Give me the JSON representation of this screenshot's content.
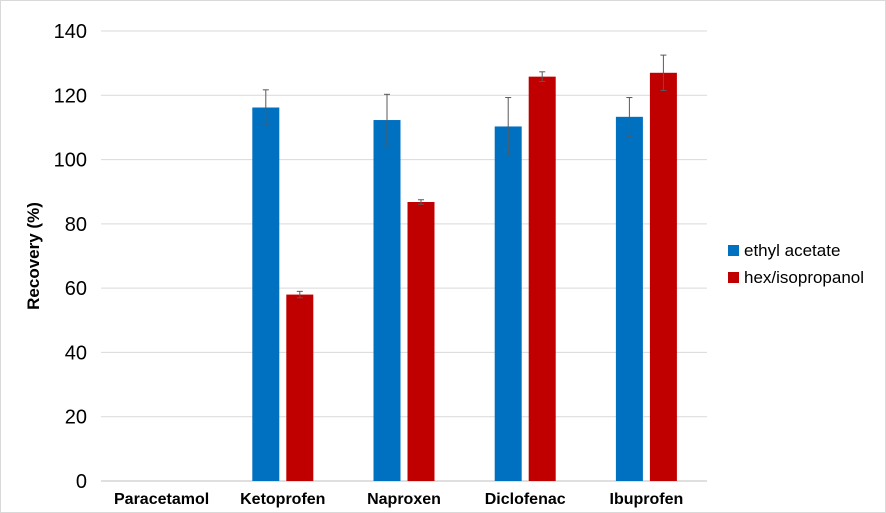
{
  "chart_data": {
    "type": "bar",
    "title": "",
    "xlabel": "",
    "ylabel": "Recovery  (%)",
    "ylim": [
      0,
      140
    ],
    "yticks": [
      0,
      20,
      40,
      60,
      80,
      100,
      120,
      140
    ],
    "grid": true,
    "legend_position": "right",
    "categories": [
      "Paracetamol",
      "Ketoprofen",
      "Naproxen",
      "Diclofenac",
      "Ibuprofen"
    ],
    "series": [
      {
        "name": "ethyl acetate",
        "color": "#0070c0",
        "values": [
          null,
          116.2,
          112.3,
          110.3,
          113.3
        ],
        "errors": [
          null,
          5.5,
          8.0,
          9.0,
          6.0
        ]
      },
      {
        "name": "hex/isopropanol",
        "color": "#c00000",
        "values": [
          null,
          58.0,
          86.8,
          125.8,
          127.0
        ],
        "errors": [
          null,
          1.0,
          0.7,
          1.5,
          5.5
        ]
      }
    ]
  }
}
